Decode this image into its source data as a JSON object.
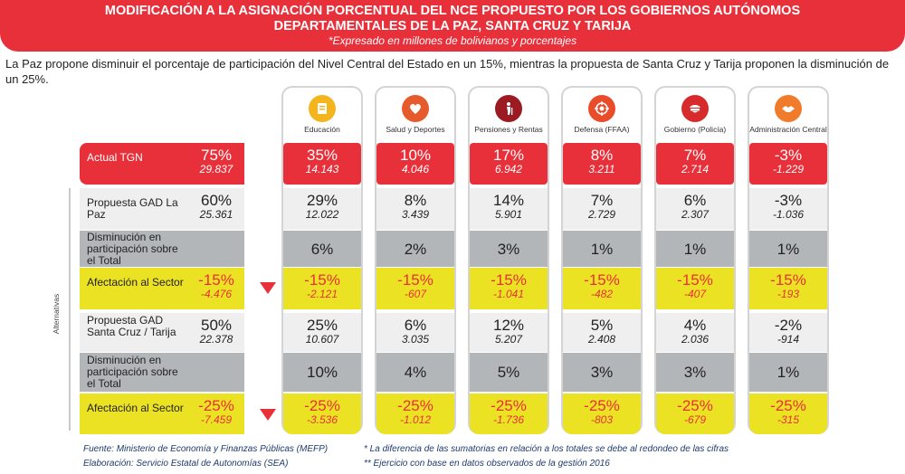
{
  "header": {
    "title_line1": "MODIFICACIÓN A LA ASIGNACIÓN PORCENTUAL DEL NCE PROPUESTO POR LOS GOBIERNOS AUTÓNOMOS",
    "title_line2": "DEPARTAMENTALES DE LA PAZ, SANTA CRUZ Y TARIJA",
    "subtitle": "*Expresado en millones de bolivianos y porcentajes"
  },
  "intro": "La Paz propone disminuir el porcentaje de participación del Nivel Central del Estado en un 15%, mientras la propuesta de Santa Cruz y Tarija proponen la disminución de un 25%.",
  "side_label": "Alternativas",
  "colors": {
    "red": "#e8303a",
    "yellow": "#ece224",
    "gray": "#b2b6b9",
    "light": "#efefef"
  },
  "chart_data": {
    "type": "table",
    "columns": [
      {
        "label": "Educación",
        "icon": "book-icon",
        "color": "#f3b41c"
      },
      {
        "label": "Salud y Deportes",
        "icon": "health-icon",
        "color": "#e65b2b"
      },
      {
        "label": "Pensiones y Rentas",
        "icon": "elderly-icon",
        "color": "#9c1b22"
      },
      {
        "label": "Defensa (FFAA)",
        "icon": "target-icon",
        "color": "#ea4b2a"
      },
      {
        "label": "Gobierno (Policía)",
        "icon": "police-cap-icon",
        "color": "#d72b2b"
      },
      {
        "label": "Administración Central",
        "icon": "handshake-icon",
        "color": "#f07b2a"
      }
    ],
    "rows": [
      {
        "key": "tgn",
        "label": "Actual TGN",
        "total_pct": "75%",
        "total_amt": "29.837",
        "pct": [
          "35%",
          "10%",
          "17%",
          "8%",
          "7%",
          "-3%"
        ],
        "amt": [
          "14.143",
          "4.046",
          "6.942",
          "3.211",
          "2.714",
          "-1.229"
        ]
      },
      {
        "key": "lp",
        "label": "Propuesta GAD La Paz",
        "total_pct": "60%",
        "total_amt": "25.361",
        "pct": [
          "29%",
          "8%",
          "14%",
          "7%",
          "6%",
          "-3%"
        ],
        "amt": [
          "12.022",
          "3.439",
          "5.901",
          "2.729",
          "2.307",
          "-1.036"
        ]
      },
      {
        "key": "d1",
        "label": "Disminución en participación sobre el Total",
        "total_pct": "",
        "total_amt": "",
        "pct": [
          "6%",
          "2%",
          "3%",
          "1%",
          "1%",
          "1%"
        ],
        "amt": [
          "",
          "",
          "",
          "",
          "",
          ""
        ]
      },
      {
        "key": "a1",
        "label": "Afectación al Sector",
        "total_pct": "-15%",
        "total_amt": "-4.476",
        "pct": [
          "-15%",
          "-15%",
          "-15%",
          "-15%",
          "-15%",
          "-15%"
        ],
        "amt": [
          "-2.121",
          "-607",
          "-1.041",
          "-482",
          "-407",
          "-193"
        ]
      },
      {
        "key": "sc",
        "label": "Propuesta GAD Santa Cruz / Tarija",
        "total_pct": "50%",
        "total_amt": "22.378",
        "pct": [
          "25%",
          "6%",
          "12%",
          "5%",
          "4%",
          "-2%"
        ],
        "amt": [
          "10.607",
          "3.035",
          "5.207",
          "2.408",
          "2.036",
          "-914"
        ]
      },
      {
        "key": "d2",
        "label": "Disminución en participación sobre el Total",
        "total_pct": "",
        "total_amt": "",
        "pct": [
          "10%",
          "4%",
          "5%",
          "3%",
          "3%",
          "1%"
        ],
        "amt": [
          "",
          "",
          "",
          "",
          "",
          ""
        ]
      },
      {
        "key": "a2",
        "label": "Afectación al Sector",
        "total_pct": "-25%",
        "total_amt": "-7.459",
        "pct": [
          "-25%",
          "-25%",
          "-25%",
          "-25%",
          "-25%",
          "-25%"
        ],
        "amt": [
          "-3.536",
          "-1.012",
          "-1.736",
          "-803",
          "-679",
          "-315"
        ]
      }
    ]
  },
  "footer": {
    "source": "Fuente: Ministerio de Economía y Finanzas Públicas (MEFP)",
    "elaboration": "Elaboración: Servicio Estatal de Autonomías (SEA)",
    "note1": "* La diferencia de las sumatorias en relación a los totales se debe al redondeo de las cifras",
    "note2": "** Ejercicio con base en datos observados de la gestión 2016"
  }
}
